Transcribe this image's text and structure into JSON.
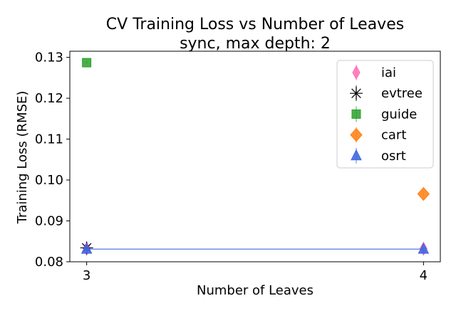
{
  "chart_data": {
    "type": "scatter",
    "title": [
      "CV Training Loss vs Number of Leaves",
      "sync, max depth: 2"
    ],
    "xlabel": "Number of Leaves",
    "ylabel": "Training Loss (RMSE)",
    "xlim": [
      2.95,
      4.05
    ],
    "ylim": [
      0.08,
      0.1315
    ],
    "xticks": [
      3,
      4
    ],
    "xtick_labels": [
      "3",
      "4"
    ],
    "yticks": [
      0.08,
      0.09,
      0.1,
      0.11,
      0.12,
      0.13
    ],
    "ytick_labels": [
      "0.08",
      "0.09",
      "0.10",
      "0.11",
      "0.12",
      "0.13"
    ],
    "grid": false,
    "legend_position": "top-right",
    "series": [
      {
        "name": "iai",
        "marker": "thin-diamond",
        "color": "#ff69b4",
        "points": [
          {
            "x": 3,
            "y": 0.0832,
            "err": 0.0008
          },
          {
            "x": 4,
            "y": 0.0832,
            "err": 0.0008
          }
        ],
        "line": false
      },
      {
        "name": "evtree",
        "marker": "star",
        "color": "#000000",
        "points": [
          {
            "x": 3,
            "y": 0.0834,
            "err": 0.0012
          }
        ],
        "line": false
      },
      {
        "name": "guide",
        "marker": "square",
        "color": "#2ca02c",
        "points": [
          {
            "x": 3,
            "y": 0.1287,
            "err": 0.0003
          }
        ],
        "line": false
      },
      {
        "name": "cart",
        "marker": "diamond",
        "color": "#ff7f0e",
        "points": [
          {
            "x": 4,
            "y": 0.0966,
            "err": 0.0006
          }
        ],
        "line": false
      },
      {
        "name": "osrt",
        "marker": "triangle",
        "color": "#4169e1",
        "points": [
          {
            "x": 3,
            "y": 0.0831,
            "err": 0.0008
          },
          {
            "x": 4,
            "y": 0.0831,
            "err": 0.0008
          }
        ],
        "line": true
      }
    ]
  }
}
